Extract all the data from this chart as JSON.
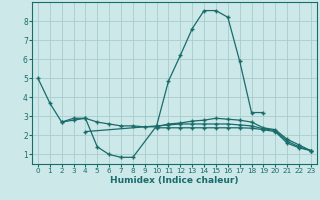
{
  "xlabel": "Humidex (Indice chaleur)",
  "background_color": "#cce8e8",
  "grid_color": "#aacccc",
  "line_color": "#1a6b6b",
  "x_ticks": [
    0,
    1,
    2,
    3,
    4,
    5,
    6,
    7,
    8,
    9,
    10,
    11,
    12,
    13,
    14,
    15,
    16,
    17,
    18,
    19,
    20,
    21,
    22,
    23
  ],
  "y_ticks": [
    1,
    2,
    3,
    4,
    5,
    6,
    7,
    8
  ],
  "xlim": [
    -0.5,
    23.5
  ],
  "ylim": [
    0.5,
    9.0
  ],
  "line1_x": [
    0,
    1,
    2,
    3,
    4,
    5,
    6,
    7,
    8,
    10,
    11,
    12,
    13,
    14,
    15,
    16,
    17,
    18,
    19
  ],
  "line1_y": [
    5.0,
    3.7,
    2.7,
    2.8,
    2.9,
    1.4,
    1.0,
    0.85,
    0.85,
    2.5,
    4.85,
    6.2,
    7.6,
    8.55,
    8.55,
    8.2,
    5.9,
    3.2,
    3.2
  ],
  "line2_x": [
    2,
    3,
    4,
    5,
    6,
    7,
    8,
    9,
    10,
    11,
    12,
    13,
    14,
    15,
    16,
    17,
    18,
    19,
    20,
    21,
    22,
    23
  ],
  "line2_y": [
    2.7,
    2.9,
    2.9,
    2.7,
    2.6,
    2.5,
    2.5,
    2.45,
    2.45,
    2.6,
    2.65,
    2.75,
    2.8,
    2.9,
    2.85,
    2.8,
    2.7,
    2.4,
    2.3,
    1.8,
    1.5,
    1.2
  ],
  "line3_x": [
    4,
    10,
    11,
    12,
    13,
    14,
    15,
    16,
    17,
    18,
    19,
    20,
    21,
    22,
    23
  ],
  "line3_y": [
    2.2,
    2.5,
    2.55,
    2.6,
    2.6,
    2.6,
    2.6,
    2.6,
    2.55,
    2.5,
    2.35,
    2.25,
    1.7,
    1.4,
    1.2
  ],
  "line4_x": [
    10,
    11,
    12,
    13,
    14,
    15,
    16,
    17,
    18,
    19,
    20,
    21,
    22,
    23
  ],
  "line4_y": [
    2.4,
    2.4,
    2.4,
    2.4,
    2.4,
    2.4,
    2.4,
    2.4,
    2.38,
    2.3,
    2.2,
    1.6,
    1.35,
    1.2
  ]
}
